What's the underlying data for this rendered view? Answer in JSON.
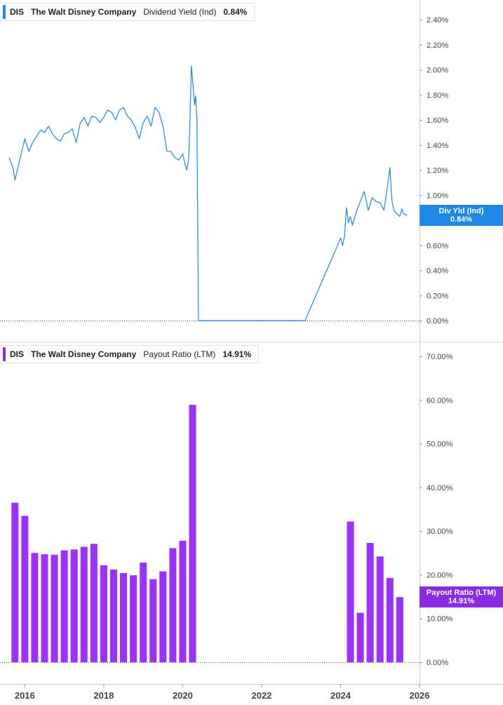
{
  "legend_top": {
    "ticker": "DIS",
    "company": "The Walt Disney Company",
    "metric": "Dividend Yield (Ind)",
    "value": "0.84%",
    "color": "#1e88e5"
  },
  "legend_bottom": {
    "ticker": "DIS",
    "company": "The Walt Disney Company",
    "metric": "Payout Ratio (LTM)",
    "value": "14.91%",
    "color": "#8a2be2"
  },
  "tag_top": {
    "label": "Div Yld (Ind)",
    "value": "0.84%",
    "color": "#1e88e5"
  },
  "tag_bottom": {
    "label": "Payout Ratio (LTM)",
    "value": "14.91%",
    "color": "#8a2be2"
  },
  "chart_data": [
    {
      "type": "line",
      "title": "",
      "series": [
        {
          "name": "Dividend Yield (Ind)",
          "x": [
            2015.6,
            2015.7,
            2015.75,
            2015.9,
            2016.0,
            2016.1,
            2016.2,
            2016.3,
            2016.4,
            2016.5,
            2016.6,
            2016.7,
            2016.8,
            2016.9,
            2017.0,
            2017.1,
            2017.2,
            2017.3,
            2017.4,
            2017.5,
            2017.6,
            2017.7,
            2017.8,
            2017.9,
            2018.0,
            2018.1,
            2018.2,
            2018.3,
            2018.4,
            2018.5,
            2018.6,
            2018.7,
            2018.8,
            2018.9,
            2019.0,
            2019.1,
            2019.2,
            2019.3,
            2019.4,
            2019.5,
            2019.6,
            2019.7,
            2019.8,
            2019.9,
            2020.0,
            2020.05,
            2020.1,
            2020.15,
            2020.18,
            2020.22,
            2020.25,
            2020.3,
            2020.33,
            2020.36,
            2020.4,
            2020.45,
            2023.1,
            2023.95,
            2024.0,
            2024.05,
            2024.1,
            2024.15,
            2024.2,
            2024.25,
            2024.3,
            2024.4,
            2024.5,
            2024.6,
            2024.7,
            2024.8,
            2024.9,
            2025.0,
            2025.1,
            2025.2,
            2025.25,
            2025.3,
            2025.35,
            2025.4,
            2025.5,
            2025.55,
            2025.6,
            2025.68
          ],
          "y": [
            1.3,
            1.22,
            1.12,
            1.32,
            1.45,
            1.35,
            1.42,
            1.47,
            1.52,
            1.5,
            1.55,
            1.49,
            1.45,
            1.43,
            1.49,
            1.5,
            1.53,
            1.42,
            1.57,
            1.62,
            1.55,
            1.63,
            1.62,
            1.58,
            1.62,
            1.68,
            1.66,
            1.6,
            1.68,
            1.7,
            1.63,
            1.6,
            1.54,
            1.45,
            1.58,
            1.63,
            1.55,
            1.7,
            1.66,
            1.55,
            1.35,
            1.35,
            1.3,
            1.28,
            1.33,
            1.26,
            1.2,
            1.28,
            1.55,
            2.03,
            1.92,
            1.72,
            1.79,
            1.6,
            0.0,
            0.0,
            0.0,
            0.62,
            0.66,
            0.6,
            0.67,
            0.9,
            0.78,
            0.83,
            0.76,
            0.87,
            0.95,
            1.03,
            0.88,
            0.98,
            0.95,
            0.94,
            0.88,
            1.1,
            1.22,
            0.96,
            0.88,
            0.86,
            0.83,
            0.89,
            0.85,
            0.84
          ]
        }
      ],
      "ylim": [
        0,
        2.4
      ],
      "y_ticks": [
        "0.00%",
        "0.20%",
        "0.40%",
        "0.60%",
        "0.80%",
        "1.00%",
        "1.20%",
        "1.40%",
        "1.60%",
        "1.80%",
        "2.00%",
        "2.20%",
        "2.40%"
      ],
      "y_tick_values": [
        0,
        0.2,
        0.4,
        0.6,
        0.8,
        1.0,
        1.2,
        1.4,
        1.6,
        1.8,
        2.0,
        2.2,
        2.4
      ],
      "y_axis_side": "right",
      "grid": false,
      "baseline": "dotted"
    },
    {
      "type": "bar",
      "title": "",
      "series": [
        {
          "name": "Payout Ratio (LTM)",
          "x": [
            2015.75,
            2016.0,
            2016.25,
            2016.5,
            2016.75,
            2017.0,
            2017.25,
            2017.5,
            2017.75,
            2018.0,
            2018.25,
            2018.5,
            2018.75,
            2019.0,
            2019.25,
            2019.5,
            2019.75,
            2020.0,
            2020.25,
            2024.25,
            2024.5,
            2024.75,
            2025.0,
            2025.25,
            2025.5
          ],
          "values": [
            36.5,
            33.5,
            25.0,
            24.7,
            24.6,
            25.6,
            25.8,
            26.4,
            27.1,
            22.2,
            21.2,
            20.4,
            19.9,
            22.8,
            19.0,
            20.8,
            26.1,
            27.8,
            58.9,
            32.2,
            11.3,
            27.3,
            24.2,
            19.3,
            14.9
          ]
        }
      ],
      "ylim": [
        0,
        70
      ],
      "y_ticks": [
        "0.00%",
        "10.00%",
        "20.00%",
        "30.00%",
        "40.00%",
        "50.00%",
        "60.00%",
        "70.00%"
      ],
      "y_tick_values": [
        0,
        10,
        20,
        30,
        40,
        50,
        60,
        70
      ],
      "y_axis_side": "right",
      "grid": false,
      "baseline": "dotted"
    }
  ],
  "x_axis": {
    "range": [
      2015.7,
      2026.0
    ],
    "ticks": [
      2016,
      2018,
      2020,
      2022,
      2024,
      2026
    ],
    "tick_labels": [
      "2016",
      "2018",
      "2020",
      "2022",
      "2024",
      "2026"
    ]
  }
}
